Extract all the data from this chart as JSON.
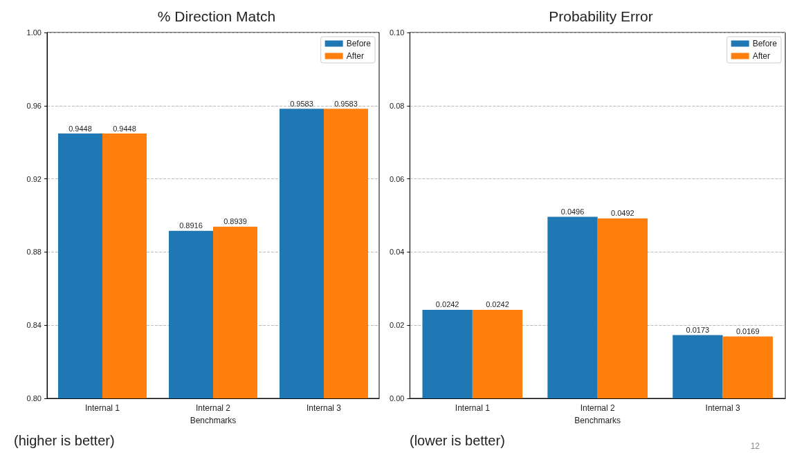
{
  "chart_data": [
    {
      "type": "bar",
      "title": "% Direction Match",
      "xlabel": "Benchmarks",
      "categories": [
        "Internal 1",
        "Internal 2",
        "Internal 3"
      ],
      "series": [
        {
          "name": "Before",
          "color": "#1f77b4",
          "values": [
            0.9448,
            0.8916,
            0.9583
          ]
        },
        {
          "name": "After",
          "color": "#ff7f0e",
          "values": [
            0.9448,
            0.8939,
            0.9583
          ]
        }
      ],
      "ylim": [
        0.8,
        1.0
      ],
      "yticks": [
        {
          "value": 0.8,
          "label": "0.80"
        },
        {
          "value": 0.84,
          "label": "0.84"
        },
        {
          "value": 0.88,
          "label": "0.88"
        },
        {
          "value": 0.92,
          "label": "0.92"
        },
        {
          "value": 0.96,
          "label": "0.96"
        },
        {
          "value": 1.0,
          "label": "1.00"
        }
      ],
      "grid": "y",
      "legend": "top right",
      "data_labels": true,
      "annotations": [
        "(higher is better)"
      ]
    },
    {
      "type": "bar",
      "title": "Probability Error",
      "xlabel": "Benchmarks",
      "categories": [
        "Internal 1",
        "Internal 2",
        "Internal 3"
      ],
      "series": [
        {
          "name": "Before",
          "color": "#1f77b4",
          "values": [
            0.0242,
            0.0496,
            0.0173
          ]
        },
        {
          "name": "After",
          "color": "#ff7f0e",
          "values": [
            0.0242,
            0.0492,
            0.0169
          ]
        }
      ],
      "ylim": [
        0,
        0.1
      ],
      "yticks": [
        {
          "value": 0,
          "label": "0.00"
        },
        {
          "value": 0.02,
          "label": "0.02"
        },
        {
          "value": 0.04,
          "label": "0.04"
        },
        {
          "value": 0.06,
          "label": "0.06"
        },
        {
          "value": 0.08,
          "label": "0.08"
        },
        {
          "value": 0.1,
          "label": "0.10"
        }
      ],
      "grid": "y",
      "legend": "top right",
      "data_labels": true,
      "annotations": [
        "(lower is better)",
        "12"
      ]
    }
  ]
}
